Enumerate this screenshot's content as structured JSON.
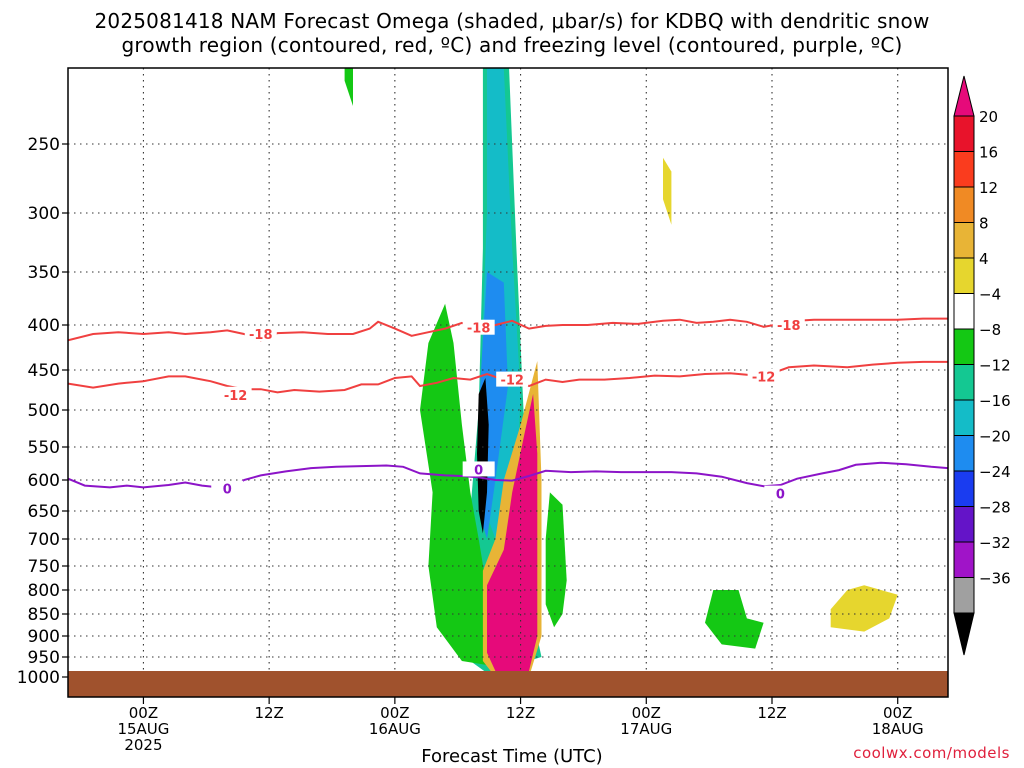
{
  "title_line1": "2025081418 NAM Forecast Omega (shaded, μbar/s) for KDBQ with dendritic snow",
  "title_line2": "growth region (contoured, red, ºC) and freezing level (contoured, purple, ºC)",
  "credit": "coolwx.com/models",
  "chart_data": {
    "type": "contour",
    "xlabel": "Forecast Time (UTC)",
    "ylabel": "",
    "ylim": [
      1030,
      190
    ],
    "x_range_hours": [
      -9,
      96
    ],
    "y_ticks": [
      250,
      300,
      350,
      400,
      450,
      500,
      550,
      600,
      650,
      700,
      750,
      800,
      850,
      900,
      950,
      1000
    ],
    "x_ticks": [
      {
        "hour": 0,
        "lines": [
          "00Z",
          "15AUG",
          "2025"
        ]
      },
      {
        "hour": 15,
        "lines": [
          "12Z"
        ]
      },
      {
        "hour": 30,
        "lines": [
          "00Z",
          "16AUG"
        ]
      },
      {
        "hour": 45,
        "lines": [
          "12Z"
        ]
      },
      {
        "hour": 60,
        "lines": [
          "00Z",
          "17AUG"
        ]
      },
      {
        "hour": 75,
        "lines": [
          "12Z"
        ]
      },
      {
        "hour": 90,
        "lines": [
          "00Z",
          "18AUG"
        ]
      }
    ],
    "colorbar": {
      "labels": [
        "20",
        "16",
        "12",
        "8",
        "4",
        "−4",
        "−8",
        "−12",
        "−16",
        "−20",
        "−24",
        "−28",
        "−32",
        "−36"
      ],
      "colors": [
        "#e8132b",
        "#fa3c1e",
        "#f08a24",
        "#e8b436",
        "#e6d62e",
        "#ffffff",
        "#14c814",
        "#14c892",
        "#14bcc8",
        "#1e8cf0",
        "#1a3cf0",
        "#6414c8",
        "#a014c8",
        "#a0a0a0"
      ],
      "top_arrow": "#e60a7a",
      "bottom_arrow": "#000000"
    },
    "series": [
      {
        "name": "-18",
        "color": "#f04040",
        "label_points": [
          [
            14,
            410
          ],
          [
            77,
            400
          ],
          [
            40,
            403
          ]
        ],
        "points": [
          [
            -9,
            417
          ],
          [
            -6,
            410
          ],
          [
            -3,
            408
          ],
          [
            0,
            410
          ],
          [
            3,
            408
          ],
          [
            5,
            410
          ],
          [
            8,
            408
          ],
          [
            10,
            406
          ],
          [
            12,
            410
          ],
          [
            14,
            417
          ],
          [
            16,
            409
          ],
          [
            19,
            408
          ],
          [
            22,
            410
          ],
          [
            25,
            410
          ],
          [
            27,
            404
          ],
          [
            28,
            397
          ],
          [
            30,
            404
          ],
          [
            32,
            412
          ],
          [
            34,
            408
          ],
          [
            36,
            404
          ],
          [
            38,
            398
          ],
          [
            40,
            404
          ],
          [
            42,
            400
          ],
          [
            44,
            396
          ],
          [
            46,
            404
          ],
          [
            48,
            401
          ],
          [
            50,
            400
          ],
          [
            53,
            400
          ],
          [
            56,
            398
          ],
          [
            59,
            399
          ],
          [
            62,
            396
          ],
          [
            64,
            395
          ],
          [
            66,
            398
          ],
          [
            68,
            397
          ],
          [
            70,
            395
          ],
          [
            72,
            397
          ],
          [
            74,
            402
          ],
          [
            76,
            399
          ],
          [
            78,
            396
          ],
          [
            80,
            395
          ],
          [
            83,
            395
          ],
          [
            87,
            395
          ],
          [
            90,
            395
          ],
          [
            93,
            394
          ],
          [
            96,
            394
          ]
        ]
      },
      {
        "name": "-12",
        "color": "#f04040",
        "label_points": [
          [
            11,
            481
          ],
          [
            44,
            462
          ],
          [
            74,
            458
          ]
        ],
        "points": [
          [
            -9,
            467
          ],
          [
            -6,
            472
          ],
          [
            -3,
            467
          ],
          [
            0,
            464
          ],
          [
            3,
            458
          ],
          [
            5,
            458
          ],
          [
            8,
            464
          ],
          [
            10,
            470
          ],
          [
            12,
            474
          ],
          [
            14,
            474
          ],
          [
            16,
            478
          ],
          [
            18,
            475
          ],
          [
            21,
            477
          ],
          [
            24,
            475
          ],
          [
            26,
            468
          ],
          [
            28,
            468
          ],
          [
            30,
            460
          ],
          [
            32,
            458
          ],
          [
            33,
            470
          ],
          [
            35,
            466
          ],
          [
            37,
            460
          ],
          [
            39,
            462
          ],
          [
            41,
            455
          ],
          [
            43,
            462
          ],
          [
            44,
            462
          ],
          [
            46,
            470
          ],
          [
            48,
            462
          ],
          [
            50,
            465
          ],
          [
            52,
            462
          ],
          [
            55,
            462
          ],
          [
            58,
            460
          ],
          [
            61,
            457
          ],
          [
            64,
            458
          ],
          [
            67,
            455
          ],
          [
            70,
            454
          ],
          [
            72,
            456
          ],
          [
            74,
            458
          ],
          [
            77,
            447
          ],
          [
            80,
            445
          ],
          [
            84,
            447
          ],
          [
            87,
            444
          ],
          [
            90,
            442
          ],
          [
            93,
            441
          ],
          [
            96,
            441
          ]
        ]
      },
      {
        "name": "0",
        "color": "#8c14c8",
        "label_points": [
          [
            10,
            614
          ],
          [
            40,
            584
          ],
          [
            76,
            622
          ]
        ],
        "points": [
          [
            -9,
            598
          ],
          [
            -7,
            609
          ],
          [
            -4,
            612
          ],
          [
            -2,
            609
          ],
          [
            0,
            612
          ],
          [
            3,
            608
          ],
          [
            5,
            604
          ],
          [
            7,
            609
          ],
          [
            9,
            612
          ],
          [
            11,
            611
          ],
          [
            12,
            600
          ],
          [
            14,
            593
          ],
          [
            17,
            587
          ],
          [
            20,
            582
          ],
          [
            23,
            580
          ],
          [
            26,
            579
          ],
          [
            29,
            578
          ],
          [
            31,
            580
          ],
          [
            33,
            590
          ],
          [
            36,
            593
          ],
          [
            38,
            594
          ],
          [
            40,
            596
          ],
          [
            42,
            600
          ],
          [
            44,
            601
          ],
          [
            46,
            594
          ],
          [
            48,
            586
          ],
          [
            51,
            588
          ],
          [
            54,
            587
          ],
          [
            57,
            588
          ],
          [
            60,
            588
          ],
          [
            63,
            588
          ],
          [
            66,
            590
          ],
          [
            69,
            595
          ],
          [
            72,
            605
          ],
          [
            74,
            610
          ],
          [
            76,
            608
          ],
          [
            78,
            598
          ],
          [
            81,
            590
          ],
          [
            83,
            585
          ],
          [
            85,
            577
          ],
          [
            88,
            574
          ],
          [
            91,
            576
          ],
          [
            94,
            580
          ],
          [
            96,
            582
          ]
        ]
      }
    ],
    "shaded_regions": [
      {
        "omega": "-12",
        "color": "#14c892",
        "points": [
          [
            40.5,
            170
          ],
          [
            43.5,
            170
          ],
          [
            44.5,
            330
          ],
          [
            45.5,
            540
          ],
          [
            46,
            700
          ],
          [
            46,
            820
          ],
          [
            47.5,
            950
          ],
          [
            41,
            990
          ],
          [
            39,
            960
          ],
          [
            38.5,
            800
          ],
          [
            39,
            650
          ],
          [
            40,
            500
          ],
          [
            40.5,
            330
          ]
        ]
      },
      {
        "omega": "-16",
        "color": "#14bcc8",
        "points": [
          [
            41,
            190
          ],
          [
            43,
            190
          ],
          [
            44,
            330
          ],
          [
            45,
            480
          ],
          [
            44.5,
            600
          ],
          [
            42,
            700
          ],
          [
            40,
            620
          ],
          [
            40.5,
            400
          ],
          [
            41,
            300
          ]
        ]
      },
      {
        "omega": "-20",
        "color": "#1e8cf0",
        "points": [
          [
            41,
            350
          ],
          [
            43,
            360
          ],
          [
            43.5,
            470
          ],
          [
            42,
            600
          ],
          [
            41,
            700
          ],
          [
            40,
            650
          ],
          [
            40,
            500
          ]
        ]
      },
      {
        "omega": "-8",
        "color": "#14c814",
        "points": [
          [
            34,
            420
          ],
          [
            36,
            380
          ],
          [
            37,
            420
          ],
          [
            38,
            520
          ],
          [
            39,
            620
          ],
          [
            40,
            700
          ],
          [
            41,
            800
          ],
          [
            41.5,
            900
          ],
          [
            41,
            970
          ],
          [
            38,
            960
          ],
          [
            35,
            880
          ],
          [
            34,
            750
          ],
          [
            34.5,
            620
          ],
          [
            33,
            500
          ]
        ]
      },
      {
        "omega": "8",
        "color": "#e8b436",
        "points": [
          [
            45,
            520
          ],
          [
            47,
            440
          ],
          [
            47.5,
            600
          ],
          [
            47.5,
            900
          ],
          [
            46,
            1000
          ],
          [
            42,
            1000
          ],
          [
            40.5,
            960
          ],
          [
            40.5,
            760
          ],
          [
            42,
            700
          ],
          [
            43,
            600
          ]
        ]
      },
      {
        "omega": "20",
        "color": "#e60a7a",
        "points": [
          [
            45.5,
            530
          ],
          [
            46.5,
            480
          ],
          [
            47,
            560
          ],
          [
            47,
            900
          ],
          [
            46,
            985
          ],
          [
            42,
            985
          ],
          [
            41,
            940
          ],
          [
            41,
            790
          ],
          [
            43,
            720
          ],
          [
            44,
            620
          ]
        ]
      },
      {
        "omega": "-36",
        "color": "#000000",
        "points": [
          [
            40,
            480
          ],
          [
            40.8,
            460
          ],
          [
            41.2,
            520
          ],
          [
            41,
            620
          ],
          [
            40.5,
            690
          ],
          [
            40,
            650
          ],
          [
            39.8,
            560
          ]
        ]
      },
      {
        "omega": "-8",
        "color": "#14c814",
        "points": [
          [
            68,
            800
          ],
          [
            71,
            800
          ],
          [
            72,
            860
          ],
          [
            74,
            870
          ],
          [
            73,
            930
          ],
          [
            69,
            920
          ],
          [
            67,
            870
          ]
        ]
      },
      {
        "omega": "4",
        "color": "#e6d62e",
        "points": [
          [
            84,
            800
          ],
          [
            86,
            790
          ],
          [
            88,
            800
          ],
          [
            90,
            810
          ],
          [
            89,
            860
          ],
          [
            86,
            890
          ],
          [
            82,
            880
          ],
          [
            82,
            840
          ]
        ]
      },
      {
        "omega": "4",
        "color": "#e6d62e",
        "points": [
          [
            62,
            260
          ],
          [
            63,
            270
          ],
          [
            63,
            310
          ],
          [
            62,
            290
          ]
        ]
      },
      {
        "omega": "-8",
        "color": "#14c814",
        "points": [
          [
            24,
            160
          ],
          [
            25,
            160
          ],
          [
            25,
            220
          ],
          [
            24,
            200
          ]
        ]
      },
      {
        "omega": "-8",
        "color": "#14c814",
        "points": [
          [
            48.5,
            620
          ],
          [
            50,
            640
          ],
          [
            50.5,
            780
          ],
          [
            50,
            850
          ],
          [
            49,
            880
          ],
          [
            48,
            830
          ],
          [
            48,
            700
          ]
        ]
      }
    ]
  }
}
